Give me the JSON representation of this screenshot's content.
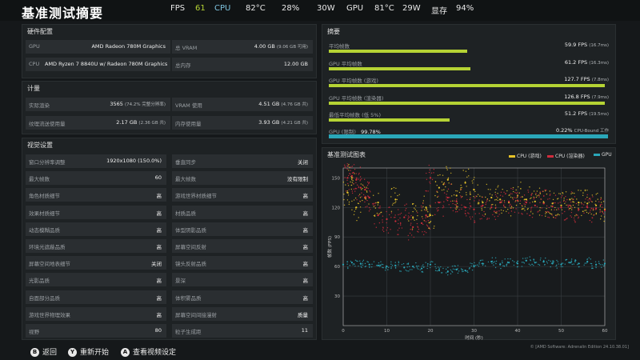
{
  "header": {
    "title": "基准测试摘要",
    "stats": [
      {
        "label": "FPS",
        "value": "61"
      },
      {
        "label": "CPU",
        "value": "82°C"
      },
      {
        "value": "28%"
      },
      {
        "value": "30W"
      },
      {
        "label": "GPU",
        "value": "81°C"
      },
      {
        "value": "29W"
      },
      {
        "label": "显存",
        "value": "94%"
      }
    ]
  },
  "hardware": {
    "title": "硬件配置",
    "gpu_label": "GPU",
    "gpu": "AMD Radeon 780M Graphics",
    "cpu_label": "CPU",
    "cpu": "AMD Ryzen 7 8840U w/ Radeon 780M Graphics",
    "vram_label": "总 VRAM",
    "vram": "4.00 GB",
    "vram_sub": "(9.06 GB 可用)",
    "ram_label": "总内存",
    "ram": "12.00 GB"
  },
  "metrics": {
    "title": "计量",
    "rows": [
      {
        "label": "实际渲染",
        "value": "3565",
        "sub": "(74.2% 完整分辨率)"
      },
      {
        "label": "VRAM 使用",
        "value": "4.51 GB",
        "sub": "(4.76 GB 共)"
      },
      {
        "label": "纹理流送使用量",
        "value": "2.17 GB",
        "sub": "(2.36 GB 共)"
      },
      {
        "label": "内存使用量",
        "value": "3.93 GB",
        "sub": "(4.21 GB 共)"
      }
    ]
  },
  "visual": {
    "title": "视觉设置",
    "rows": [
      {
        "label": "窗口分辨率调整",
        "value": "1920x1080 (150.0%)"
      },
      {
        "label": "垂直同步",
        "value": "关闭"
      },
      {
        "label": "最大帧数",
        "value": "60"
      },
      {
        "label": "最大帧数",
        "value": "没有限制"
      },
      {
        "label": "角色材质细节",
        "value": "高"
      },
      {
        "label": "游戏世界材质细节",
        "value": "高"
      },
      {
        "label": "效果材质细节",
        "value": "高"
      },
      {
        "label": "材质品质",
        "value": "高"
      },
      {
        "label": "动态模糊品质",
        "value": "高"
      },
      {
        "label": "体型阴影品质",
        "value": "高"
      },
      {
        "label": "环境光遮蔽品质",
        "value": "高"
      },
      {
        "label": "屏幕空间反射",
        "value": "高"
      },
      {
        "label": "屏幕空间地表细节",
        "value": "关闭"
      },
      {
        "label": "镜头反射品质",
        "value": "高"
      },
      {
        "label": "光影品质",
        "value": "高"
      },
      {
        "label": "景深",
        "value": "高"
      },
      {
        "label": "自面部分品质",
        "value": "高"
      },
      {
        "label": "体积雾品质",
        "value": "高"
      },
      {
        "label": "游戏世界物理效果",
        "value": "高"
      },
      {
        "label": "屏幕空间间接漫射",
        "value": "质量"
      },
      {
        "label": "视野",
        "value": "80"
      },
      {
        "label": "粒子生成距",
        "value": "11"
      }
    ]
  },
  "summary": {
    "title": "摘要",
    "rows": [
      {
        "label": "平均帧数",
        "value": "59.9 FPS",
        "sub": "(16.7ms)",
        "pct": 0.495
      },
      {
        "label": "GPU 平均帧数",
        "value": "61.2 FPS",
        "sub": "(16.3ms)",
        "pct": 0.505
      },
      {
        "label": "GPU 平均帧数 (游戏)",
        "value": "127.7 FPS",
        "sub": "(7.8ms)",
        "pct": 0.985
      },
      {
        "label": "GPU 平均帧数 (渲染器)",
        "value": "126.8 FPS",
        "sub": "(7.9ms)",
        "pct": 0.985
      },
      {
        "label": "最低平均帧数 (低 5%)",
        "value": "51.2 FPS",
        "sub": "(19.5ms)",
        "pct": 0.43
      }
    ],
    "bound_label": "GPU (限制)",
    "bound_pct": "99.78%",
    "bound_right": "0.22%",
    "bound_right_label": "CPU-Bound 工作",
    "bound_fill": 0.9978
  },
  "chart": {
    "title": "基准测试图表",
    "legend": [
      {
        "name": "CPU (游戏)",
        "color": "#e6c229"
      },
      {
        "name": "CPU (渲染器)",
        "color": "#d02c3c"
      },
      {
        "name": "GPU",
        "color": "#2aa7b9"
      }
    ],
    "ylabel": "帧数 (FPS)",
    "xlabel": "时间 (秒)"
  },
  "chart_data": {
    "type": "scatter",
    "title": "基准测试图表",
    "xlabel": "时间 (秒)",
    "ylabel": "帧数 (FPS)",
    "xlim": [
      0,
      60
    ],
    "ylim": [
      0,
      160
    ],
    "x_ticks": [
      0,
      10,
      20,
      30,
      40,
      50,
      60
    ],
    "y_ticks": [
      30,
      60,
      90,
      120,
      150
    ],
    "grid": true,
    "legend": "top-right",
    "series": [
      {
        "name": "CPU (游戏)",
        "color": "#e6c229",
        "x": [
          1,
          2,
          3,
          5,
          8,
          12,
          16,
          19,
          20,
          22,
          24,
          26,
          28,
          30,
          32,
          34,
          36,
          38,
          40,
          42,
          44,
          46,
          48,
          50,
          52,
          54,
          56,
          58,
          60
        ],
        "y": [
          135,
          150,
          120,
          130,
          125,
          128,
          110,
          120,
          112,
          140,
          148,
          132,
          145,
          138,
          125,
          130,
          128,
          125,
          132,
          128,
          126,
          125,
          124,
          122,
          128,
          125,
          124,
          122,
          118
        ]
      },
      {
        "name": "CPU (渲染器)",
        "color": "#d02c3c",
        "x": [
          1,
          2,
          3,
          4,
          5,
          6,
          8,
          10,
          12,
          14,
          16,
          18,
          19,
          20,
          22,
          24,
          26,
          28,
          30,
          32,
          34,
          36,
          38,
          40,
          42,
          44,
          46,
          48,
          50,
          52,
          54,
          56,
          58,
          60
        ],
        "y": [
          150,
          152,
          148,
          140,
          138,
          130,
          112,
          108,
          106,
          110,
          100,
          104,
          112,
          150,
          125,
          130,
          126,
          120,
          118,
          122,
          120,
          125,
          126,
          127,
          125,
          122,
          124,
          121,
          120,
          122,
          118,
          120,
          119,
          117
        ]
      },
      {
        "name": "GPU",
        "color": "#2aa7b9",
        "x": [
          0,
          2,
          4,
          6,
          8,
          10,
          12,
          14,
          16,
          18,
          20,
          22,
          24,
          26,
          28,
          30,
          32,
          34,
          36,
          38,
          40,
          42,
          44,
          46,
          48,
          50,
          52,
          54,
          56,
          58,
          60
        ],
        "y": [
          62,
          64,
          63,
          62,
          61,
          60,
          61,
          59,
          60,
          58,
          62,
          56,
          55,
          57,
          56,
          60,
          63,
          65,
          62,
          64,
          63,
          66,
          64,
          65,
          63,
          62,
          64,
          63,
          65,
          62,
          63
        ]
      }
    ]
  },
  "footer": {
    "back": "返回",
    "restart": "重新开始",
    "view": "查看视频设定",
    "b": "B",
    "y": "Y",
    "a": "A",
    "version": "© [AMD Software: Adrenalin Edition 24.10.38.01]"
  }
}
